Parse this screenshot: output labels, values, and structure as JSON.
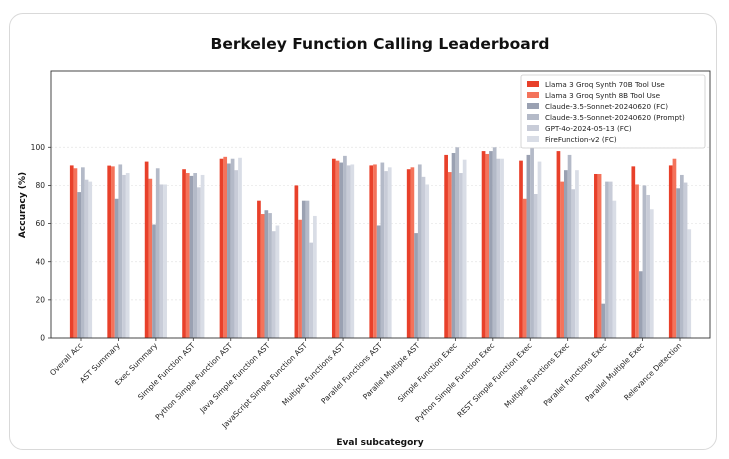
{
  "chart_data": {
    "type": "bar",
    "title": "Berkeley Function Calling Leaderboard",
    "xlabel": "Eval subcategory",
    "ylabel": "Accuracy (%)",
    "ylim": [
      0,
      140
    ],
    "yticks": [
      0,
      20,
      40,
      60,
      80,
      100
    ],
    "grid": true,
    "legend_position": "top-right",
    "categories": [
      "Overall Acc",
      "AST Summary",
      "Exec Summary",
      "Simple Function AST",
      "Python Simple Function AST",
      "Java Simple Function AST",
      "JavaScript Simple Function AST",
      "Multiple Functions AST",
      "Parallel Functions AST",
      "Parallel Multiple AST",
      "Simple Function Exec",
      "Python Simple Function Exec",
      "REST Simple Function Exec",
      "Multiple Functions Exec",
      "Parallel Functions Exec",
      "Parallel Multiple Exec",
      "Relevance Detection"
    ],
    "series": [
      {
        "name": "Llama 3 Groq Synth 70B Tool Use",
        "color": "#e8402a",
        "values": [
          90.5,
          90.4,
          92.5,
          88.5,
          94,
          72,
          80,
          94,
          90.5,
          88.5,
          96,
          98,
          93,
          98,
          86,
          90,
          90.5
        ]
      },
      {
        "name": "Llama 3 Groq Synth 8B Tool Use",
        "color": "#f4735b",
        "values": [
          89,
          90,
          83.5,
          86.5,
          95,
          65,
          62,
          93,
          91,
          89.5,
          87,
          96.5,
          73,
          82,
          86,
          80.5,
          94
        ]
      },
      {
        "name": "Claude-3.5-Sonnet-20240620 (FC)",
        "color": "#9aa1b2",
        "values": [
          76.5,
          73,
          59.5,
          85,
          91.5,
          67,
          72,
          92,
          59,
          55,
          97,
          98,
          96,
          88,
          18,
          35,
          78.5
        ]
      },
      {
        "name": "Claude-3.5-Sonnet-20240620 (Prompt)",
        "color": "#b4bac8",
        "values": [
          89.5,
          91,
          89,
          86.5,
          94,
          65.5,
          72,
          95.5,
          92,
          91,
          100,
          100,
          100,
          96,
          82,
          80,
          85.5
        ]
      },
      {
        "name": "GPT-4o-2024-05-13 (FC)",
        "color": "#c8ccd8",
        "values": [
          83,
          85.5,
          80.5,
          79,
          88,
          56,
          50,
          90.5,
          87.5,
          84.5,
          86.5,
          94,
          75.5,
          78,
          82,
          75,
          81.5
        ]
      },
      {
        "name": "FireFunction-v2 (FC)",
        "color": "#d9dde6",
        "values": [
          82,
          86.5,
          80.5,
          85.5,
          94.5,
          59,
          64,
          91,
          89.5,
          80.5,
          93.5,
          94,
          92.5,
          88,
          72,
          67.5,
          57
        ]
      }
    ]
  }
}
